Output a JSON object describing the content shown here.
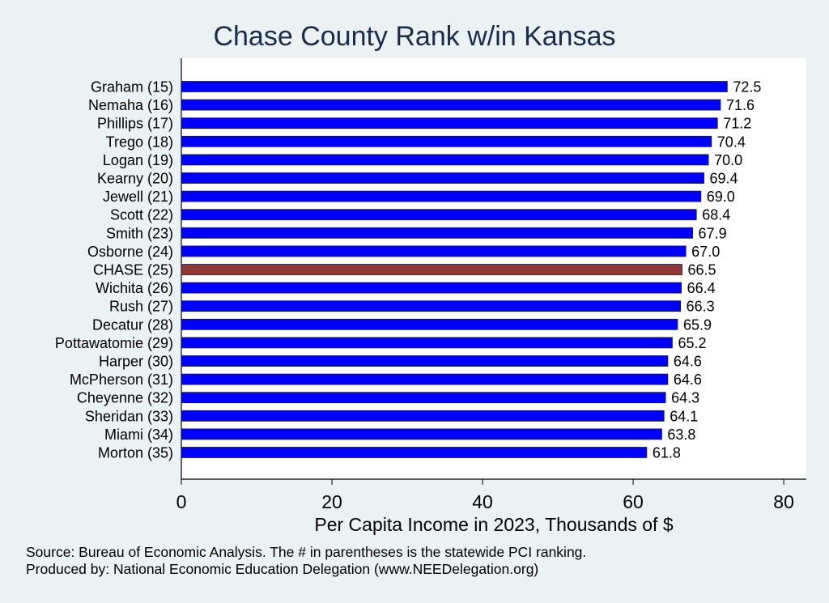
{
  "chart_data": {
    "type": "bar",
    "orientation": "horizontal",
    "title": "Chase County Rank w/in Kansas",
    "xlabel": "Per Capita Income in 2023, Thousands of $",
    "ylabel": "",
    "xlim": [
      0,
      83
    ],
    "xticks": [
      0,
      20,
      40,
      60,
      80
    ],
    "grid": false,
    "categories": [
      "Graham (15)",
      "Nemaha (16)",
      "Phillips (17)",
      "Trego (18)",
      "Logan (19)",
      "Kearny (20)",
      "Jewell (21)",
      "Scott (22)",
      "Smith (23)",
      "Osborne (24)",
      "CHASE (25)",
      "Wichita (26)",
      "Rush (27)",
      "Decatur (28)",
      "Pottawatomie (29)",
      "Harper (30)",
      "McPherson (31)",
      "Cheyenne (32)",
      "Sheridan (33)",
      "Miami (34)",
      "Morton (35)"
    ],
    "values": [
      72.5,
      71.6,
      71.2,
      70.4,
      70.0,
      69.4,
      69.0,
      68.4,
      67.9,
      67.0,
      66.5,
      66.4,
      66.3,
      65.9,
      65.2,
      64.6,
      64.6,
      64.3,
      64.1,
      63.8,
      61.8
    ],
    "value_labels": [
      "72.5",
      "71.6",
      "71.2",
      "70.4",
      "70.0",
      "69.4",
      "69.0",
      "68.4",
      "67.9",
      "67.0",
      "66.5",
      "66.4",
      "66.3",
      "65.9",
      "65.2",
      "64.6",
      "64.6",
      "64.3",
      "64.1",
      "63.8",
      "61.8"
    ],
    "highlight_index": 10,
    "colors": {
      "bar": "#0000ff",
      "highlight": "#903838",
      "bar_edge": "#1a1a3a",
      "background": "#eaf2f3",
      "plot_bg": "#ffffff",
      "title": "#1a2b4c"
    }
  },
  "notes": {
    "source": "Source: Bureau of Economic Analysis. The # in parentheses is the statewide PCI ranking.",
    "producer": "Produced by: National Economic Education Delegation (www.NEEDelegation.org)"
  }
}
